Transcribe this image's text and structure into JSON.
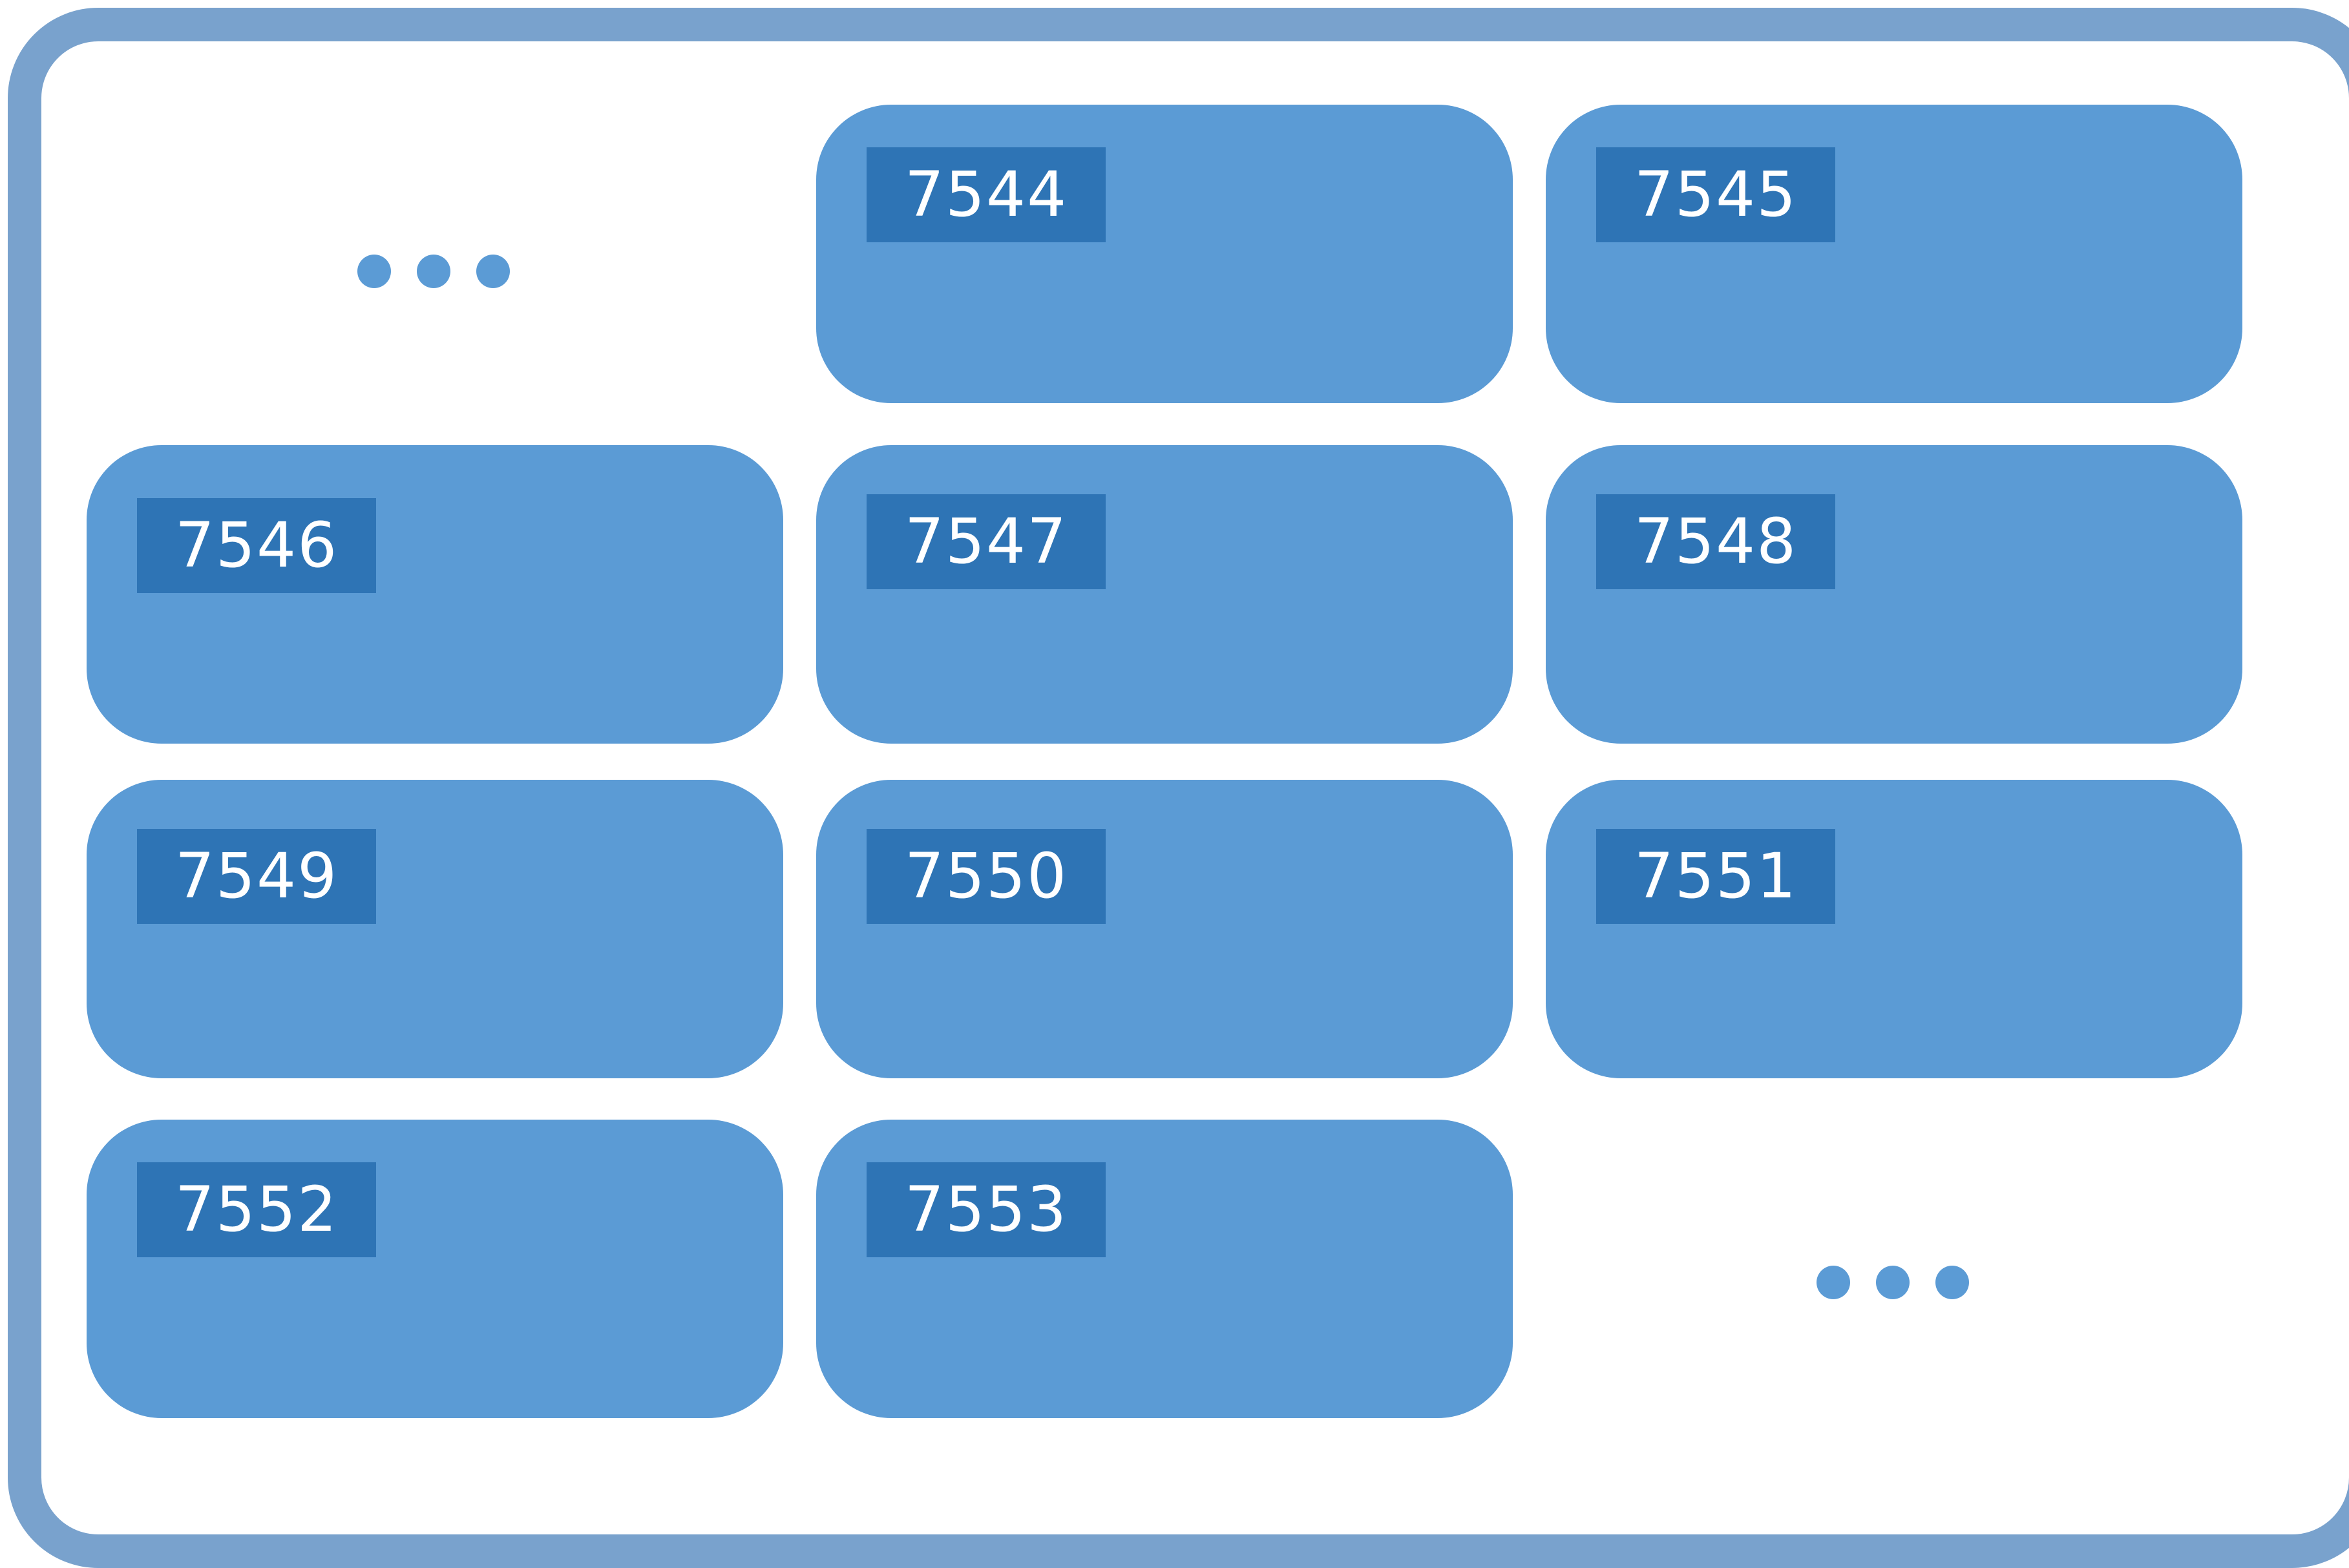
{
  "cells": [
    "7544",
    "7545",
    "7546",
    "7547",
    "7548",
    "7549",
    "7550",
    "7551",
    "7552",
    "7553"
  ],
  "continuation_before": "more-items-before",
  "continuation_after": "more-items-after",
  "colors": {
    "frame_border": "#79a2cd",
    "cell_fill": "#5b9bd5",
    "label_fill": "#2e74b5",
    "label_text": "#ffffff",
    "ellipsis_dots": "#5b9bd5"
  }
}
